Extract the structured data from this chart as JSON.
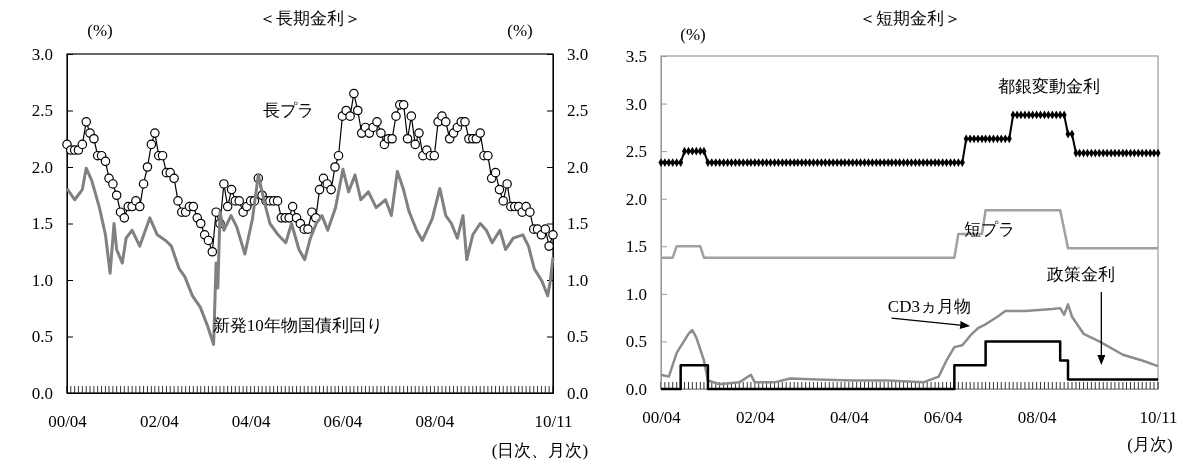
{
  "chart_data": [
    {
      "type": "line",
      "title": "＜長期金利＞",
      "ylabel": "(%)",
      "y2label": "(%)",
      "annotations": [
        "(日次、月次)"
      ],
      "x": [
        "2000-04",
        "2000-05",
        "2000-06",
        "2000-07",
        "2000-08",
        "2000-09",
        "2000-10",
        "2000-11",
        "2000-12",
        "2001-01",
        "2001-02",
        "2001-03",
        "2001-04",
        "2001-05",
        "2001-06",
        "2001-07",
        "2001-08",
        "2001-09",
        "2001-10",
        "2001-11",
        "2001-12",
        "2002-01",
        "2002-02",
        "2002-03",
        "2002-04",
        "2002-05",
        "2002-06",
        "2002-07",
        "2002-08",
        "2002-09",
        "2002-10",
        "2002-11",
        "2002-12",
        "2003-01",
        "2003-02",
        "2003-03",
        "2003-04",
        "2003-05",
        "2003-06",
        "2003-07",
        "2003-08",
        "2003-09",
        "2003-10",
        "2003-11",
        "2003-12",
        "2004-01",
        "2004-02",
        "2004-03",
        "2004-04",
        "2004-05",
        "2004-06",
        "2004-07",
        "2004-08",
        "2004-09",
        "2004-10",
        "2004-11",
        "2004-12",
        "2005-01",
        "2005-02",
        "2005-03",
        "2005-04",
        "2005-05",
        "2005-06",
        "2005-07",
        "2005-08",
        "2005-09",
        "2005-10",
        "2005-11",
        "2005-12",
        "2006-01",
        "2006-02",
        "2006-03",
        "2006-04",
        "2006-05",
        "2006-06",
        "2006-07",
        "2006-08",
        "2006-09",
        "2006-10",
        "2006-11",
        "2006-12",
        "2007-01",
        "2007-02",
        "2007-03",
        "2007-04",
        "2007-05",
        "2007-06",
        "2007-07",
        "2007-08",
        "2007-09",
        "2007-10",
        "2007-11",
        "2007-12",
        "2008-01",
        "2008-02",
        "2008-03",
        "2008-04",
        "2008-05",
        "2008-06",
        "2008-07",
        "2008-08",
        "2008-09",
        "2008-10",
        "2008-11",
        "2008-12",
        "2009-01",
        "2009-02",
        "2009-03",
        "2009-04",
        "2009-05",
        "2009-06",
        "2009-07",
        "2009-08",
        "2009-09",
        "2009-10",
        "2009-11",
        "2009-12",
        "2010-01",
        "2010-02",
        "2010-03",
        "2010-04",
        "2010-05",
        "2010-06",
        "2010-07",
        "2010-08",
        "2010-09",
        "2010-10",
        "2010-11"
      ],
      "xlim": [
        "2000-04",
        "2010-11"
      ],
      "xticks": [
        {
          "value": "2000-04",
          "label": "00/04"
        },
        {
          "value": "2002-04",
          "label": "02/04"
        },
        {
          "value": "2004-04",
          "label": "04/04"
        },
        {
          "value": "2006-04",
          "label": "06/04"
        },
        {
          "value": "2008-04",
          "label": "08/04"
        },
        {
          "value": "2010-11",
          "label": "10/11"
        }
      ],
      "ylim": [
        0,
        3
      ],
      "yticks": [
        {
          "value": 0,
          "label": "0.0"
        },
        {
          "value": 0.5,
          "label": "0.5"
        },
        {
          "value": 1,
          "label": "1.0"
        },
        {
          "value": 1.5,
          "label": "1.5"
        },
        {
          "value": 2,
          "label": "2.0"
        },
        {
          "value": 2.5,
          "label": "2.5"
        },
        {
          "value": 3,
          "label": "3.0"
        }
      ],
      "y2lim": [
        0,
        3
      ],
      "y2ticks": [
        {
          "value": 0,
          "label": "0.0"
        },
        {
          "value": 0.5,
          "label": "0.5"
        },
        {
          "value": 1,
          "label": "1.0"
        },
        {
          "value": 1.5,
          "label": "1.5"
        },
        {
          "value": 2,
          "label": "2.0"
        },
        {
          "value": 2.5,
          "label": "2.5"
        },
        {
          "value": 3,
          "label": "3.0"
        }
      ],
      "series": [
        {
          "name": "長プラ",
          "color": "#000000",
          "marker": "circle",
          "values": [
            2.2,
            2.15,
            2.15,
            2.15,
            2.2,
            2.4,
            2.3,
            2.25,
            2.1,
            2.1,
            2.05,
            1.9,
            1.85,
            1.75,
            1.6,
            1.55,
            1.65,
            1.65,
            1.7,
            1.65,
            1.85,
            2.0,
            2.2,
            2.3,
            2.1,
            2.1,
            1.95,
            1.95,
            1.9,
            1.7,
            1.6,
            1.6,
            1.65,
            1.65,
            1.55,
            1.5,
            1.4,
            1.35,
            1.25,
            1.6,
            1.5,
            1.85,
            1.65,
            1.8,
            1.7,
            1.7,
            1.6,
            1.65,
            1.7,
            1.7,
            1.9,
            1.75,
            1.7,
            1.7,
            1.7,
            1.7,
            1.55,
            1.55,
            1.55,
            1.65,
            1.55,
            1.5,
            1.45,
            1.45,
            1.6,
            1.55,
            1.8,
            1.9,
            1.85,
            1.8,
            2.0,
            2.1,
            2.45,
            2.5,
            2.45,
            2.65,
            2.5,
            2.3,
            2.35,
            2.3,
            2.35,
            2.4,
            2.3,
            2.2,
            2.25,
            2.25,
            2.45,
            2.55,
            2.55,
            2.25,
            2.45,
            2.2,
            2.3,
            2.1,
            2.15,
            2.1,
            2.1,
            2.4,
            2.45,
            2.4,
            2.25,
            2.3,
            2.35,
            2.4,
            2.4,
            2.25,
            2.25,
            2.25,
            2.3,
            2.1,
            2.1,
            1.9,
            1.95,
            1.8,
            1.7,
            1.85,
            1.65,
            1.65,
            1.65,
            1.6,
            1.65,
            1.6,
            1.45,
            1.45,
            1.4,
            1.45,
            1.3,
            1.4
          ]
        },
        {
          "name": "新発10年物国債利回り",
          "color": "#808080",
          "x": [
            "2000-04-01",
            "2000-06-01",
            "2000-08-01",
            "2000-09-01",
            "2000-10-15",
            "2000-12-15",
            "2001-02-01",
            "2001-03-10",
            "2001-04-10",
            "2001-05-01",
            "2001-06-15",
            "2001-07-15",
            "2001-09-01",
            "2001-11-01",
            "2002-01-20",
            "2002-03-20",
            "2002-05-25",
            "2002-07-10",
            "2002-09-10",
            "2002-10-25",
            "2002-12-25",
            "2003-02-25",
            "2003-04-25",
            "2003-06-11",
            "2003-07-01",
            "2003-07-15",
            "2003-08-01",
            "2003-09-01",
            "2003-10-28",
            "2003-12-12",
            "2004-02-15",
            "2004-04-15",
            "2004-06-01",
            "2004-07-15",
            "2004-09-01",
            "2004-11-05",
            "2005-01-05",
            "2005-02-20",
            "2005-04-20",
            "2005-06-05",
            "2005-07-20",
            "2005-09-05",
            "2005-10-20",
            "2005-12-05",
            "2006-02-05",
            "2006-04-05",
            "2006-05-20",
            "2006-07-10",
            "2006-08-25",
            "2006-10-25",
            "2006-12-25",
            "2007-03-10",
            "2007-04-25",
            "2007-06-12",
            "2007-07-28",
            "2007-09-12",
            "2007-11-12",
            "2007-12-28",
            "2008-03-15",
            "2008-05-15",
            "2008-07-01",
            "2008-08-15",
            "2008-10-01",
            "2008-11-15",
            "2008-12-15",
            "2009-02-01",
            "2009-04-01",
            "2009-05-20",
            "2009-07-05",
            "2009-09-05",
            "2009-10-20",
            "2009-12-20",
            "2010-03-05",
            "2010-04-20",
            "2010-06-05",
            "2010-08-05",
            "2010-09-20",
            "2010-10-10",
            "2010-11-01"
          ],
          "values": [
            1.81,
            1.71,
            1.8,
            1.99,
            1.88,
            1.64,
            1.4,
            1.06,
            1.5,
            1.27,
            1.15,
            1.37,
            1.44,
            1.3,
            1.55,
            1.4,
            1.35,
            1.3,
            1.1,
            1.03,
            0.86,
            0.76,
            0.59,
            0.43,
            1.15,
            0.93,
            1.6,
            1.44,
            1.57,
            1.47,
            1.23,
            1.54,
            1.93,
            1.71,
            1.5,
            1.4,
            1.33,
            1.5,
            1.27,
            1.18,
            1.37,
            1.5,
            1.57,
            1.44,
            1.64,
            1.98,
            1.78,
            1.93,
            1.71,
            1.78,
            1.64,
            1.71,
            1.57,
            1.96,
            1.81,
            1.61,
            1.44,
            1.35,
            1.54,
            1.81,
            1.57,
            1.5,
            1.37,
            1.57,
            1.18,
            1.4,
            1.5,
            1.44,
            1.33,
            1.44,
            1.27,
            1.37,
            1.4,
            1.3,
            1.1,
            0.99,
            0.86,
            0.99,
            1.2
          ]
        }
      ]
    },
    {
      "type": "line",
      "title": "＜短期金利＞",
      "ylabel": "(%)",
      "annotations": [
        "(月次)"
      ],
      "x": [
        "2000-04",
        "2000-05",
        "2000-06",
        "2000-07",
        "2000-08",
        "2000-09",
        "2000-10",
        "2000-11",
        "2000-12",
        "2001-01",
        "2001-02",
        "2001-03",
        "2001-04",
        "2001-05",
        "2001-06",
        "2001-07",
        "2001-08",
        "2001-09",
        "2001-10",
        "2001-11",
        "2001-12",
        "2002-01",
        "2002-02",
        "2002-03",
        "2002-04",
        "2002-05",
        "2002-06",
        "2002-07",
        "2002-08",
        "2002-09",
        "2002-10",
        "2002-11",
        "2002-12",
        "2003-01",
        "2003-02",
        "2003-03",
        "2003-04",
        "2003-05",
        "2003-06",
        "2003-07",
        "2003-08",
        "2003-09",
        "2003-10",
        "2003-11",
        "2003-12",
        "2004-01",
        "2004-02",
        "2004-03",
        "2004-04",
        "2004-05",
        "2004-06",
        "2004-07",
        "2004-08",
        "2004-09",
        "2004-10",
        "2004-11",
        "2004-12",
        "2005-01",
        "2005-02",
        "2005-03",
        "2005-04",
        "2005-05",
        "2005-06",
        "2005-07",
        "2005-08",
        "2005-09",
        "2005-10",
        "2005-11",
        "2005-12",
        "2006-01",
        "2006-02",
        "2006-03",
        "2006-04",
        "2006-05",
        "2006-06",
        "2006-07",
        "2006-08",
        "2006-09",
        "2006-10",
        "2006-11",
        "2006-12",
        "2007-01",
        "2007-02",
        "2007-03",
        "2007-04",
        "2007-05",
        "2007-06",
        "2007-07",
        "2007-08",
        "2007-09",
        "2007-10",
        "2007-11",
        "2007-12",
        "2008-01",
        "2008-02",
        "2008-03",
        "2008-04",
        "2008-05",
        "2008-06",
        "2008-07",
        "2008-08",
        "2008-09",
        "2008-10",
        "2008-11",
        "2008-12",
        "2009-01",
        "2009-02",
        "2009-03",
        "2009-04",
        "2009-05",
        "2009-06",
        "2009-07",
        "2009-08",
        "2009-09",
        "2009-10",
        "2009-11",
        "2009-12",
        "2010-01",
        "2010-02",
        "2010-03",
        "2010-04",
        "2010-05",
        "2010-06",
        "2010-07",
        "2010-08",
        "2010-09",
        "2010-10",
        "2010-11"
      ],
      "xlim": [
        "2000-04",
        "2010-11"
      ],
      "xticks": [
        {
          "value": "2000-04",
          "label": "00/04"
        },
        {
          "value": "2002-04",
          "label": "02/04"
        },
        {
          "value": "2004-04",
          "label": "04/04"
        },
        {
          "value": "2006-04",
          "label": "06/04"
        },
        {
          "value": "2008-04",
          "label": "08/04"
        },
        {
          "value": "2010-11",
          "label": "10/11"
        }
      ],
      "ylim": [
        0,
        3.5
      ],
      "yticks": [
        {
          "value": 0,
          "label": "0.0"
        },
        {
          "value": 0.5,
          "label": "0.5"
        },
        {
          "value": 1,
          "label": "1.0"
        },
        {
          "value": 1.5,
          "label": "1.5"
        },
        {
          "value": 2,
          "label": "2.0"
        },
        {
          "value": 2.5,
          "label": "2.5"
        },
        {
          "value": 3,
          "label": "3.0"
        },
        {
          "value": 3.5,
          "label": "3.5"
        }
      ],
      "series": [
        {
          "name": "都銀変動金利",
          "color": "#000000",
          "marker": "diamond",
          "values": [
            2.38,
            2.38,
            2.38,
            2.38,
            2.38,
            2.38,
            2.5,
            2.5,
            2.5,
            2.5,
            2.5,
            2.5,
            2.38,
            2.38,
            2.38,
            2.38,
            2.38,
            2.38,
            2.38,
            2.38,
            2.38,
            2.38,
            2.38,
            2.38,
            2.38,
            2.38,
            2.38,
            2.38,
            2.38,
            2.38,
            2.38,
            2.38,
            2.38,
            2.38,
            2.38,
            2.38,
            2.38,
            2.38,
            2.38,
            2.38,
            2.38,
            2.38,
            2.38,
            2.38,
            2.38,
            2.38,
            2.38,
            2.38,
            2.38,
            2.38,
            2.38,
            2.38,
            2.38,
            2.38,
            2.38,
            2.38,
            2.38,
            2.38,
            2.38,
            2.38,
            2.38,
            2.38,
            2.38,
            2.38,
            2.38,
            2.38,
            2.38,
            2.38,
            2.38,
            2.38,
            2.38,
            2.38,
            2.38,
            2.38,
            2.38,
            2.38,
            2.38,
            2.38,
            2.63,
            2.63,
            2.63,
            2.63,
            2.63,
            2.63,
            2.63,
            2.63,
            2.63,
            2.63,
            2.63,
            2.63,
            2.88,
            2.88,
            2.88,
            2.88,
            2.88,
            2.88,
            2.88,
            2.88,
            2.88,
            2.88,
            2.88,
            2.88,
            2.88,
            2.88,
            2.68,
            2.68,
            2.48,
            2.48,
            2.48,
            2.48,
            2.48,
            2.48,
            2.48,
            2.48,
            2.48,
            2.48,
            2.48,
            2.48,
            2.48,
            2.48,
            2.48,
            2.48,
            2.48,
            2.48,
            2.48,
            2.48,
            2.48,
            2.48
          ]
        },
        {
          "name": "短プラ",
          "color": "#a0a0a0",
          "values": [
            1.38,
            1.38,
            1.38,
            1.38,
            1.5,
            1.5,
            1.5,
            1.5,
            1.5,
            1.5,
            1.5,
            1.38,
            1.38,
            1.38,
            1.38,
            1.38,
            1.38,
            1.38,
            1.38,
            1.38,
            1.38,
            1.38,
            1.38,
            1.38,
            1.38,
            1.38,
            1.38,
            1.38,
            1.38,
            1.38,
            1.38,
            1.38,
            1.38,
            1.38,
            1.38,
            1.38,
            1.38,
            1.38,
            1.38,
            1.38,
            1.38,
            1.38,
            1.38,
            1.38,
            1.38,
            1.38,
            1.38,
            1.38,
            1.38,
            1.38,
            1.38,
            1.38,
            1.38,
            1.38,
            1.38,
            1.38,
            1.38,
            1.38,
            1.38,
            1.38,
            1.38,
            1.38,
            1.38,
            1.38,
            1.38,
            1.38,
            1.38,
            1.38,
            1.38,
            1.38,
            1.38,
            1.38,
            1.38,
            1.38,
            1.38,
            1.38,
            1.63,
            1.63,
            1.63,
            1.63,
            1.63,
            1.63,
            1.63,
            1.88,
            1.88,
            1.88,
            1.88,
            1.88,
            1.88,
            1.88,
            1.88,
            1.88,
            1.88,
            1.88,
            1.88,
            1.88,
            1.88,
            1.88,
            1.88,
            1.88,
            1.88,
            1.88,
            1.88,
            1.68,
            1.48,
            1.48,
            1.48,
            1.48,
            1.48,
            1.48,
            1.48,
            1.48,
            1.48,
            1.48,
            1.48,
            1.48,
            1.48,
            1.48,
            1.48,
            1.48,
            1.48,
            1.48,
            1.48,
            1.48,
            1.48,
            1.48,
            1.48,
            1.48
          ]
        },
        {
          "name": "CD3ヵ月物",
          "color": "#8c8c8c",
          "x": [
            "2000-04",
            "2000-06",
            "2000-08",
            "2000-11",
            "2000-12",
            "2001-01",
            "2001-03",
            "2001-04",
            "2001-07",
            "2001-12",
            "2002-03",
            "2002-04",
            "2002-09",
            "2003-01",
            "2003-08",
            "2004-05",
            "2005-02",
            "2005-11",
            "2006-03",
            "2006-05",
            "2006-07",
            "2006-09",
            "2006-11",
            "2007-01",
            "2007-03",
            "2007-06",
            "2007-08",
            "2008-01",
            "2008-08",
            "2008-10",
            "2008-11",
            "2008-12",
            "2009-01",
            "2009-04",
            "2009-08",
            "2010-02",
            "2010-07",
            "2010-11"
          ],
          "values": [
            0.15,
            0.13,
            0.38,
            0.58,
            0.62,
            0.54,
            0.3,
            0.09,
            0.05,
            0.07,
            0.15,
            0.07,
            0.07,
            0.11,
            0.1,
            0.09,
            0.09,
            0.07,
            0.13,
            0.3,
            0.44,
            0.46,
            0.56,
            0.64,
            0.68,
            0.76,
            0.82,
            0.82,
            0.84,
            0.85,
            0.78,
            0.89,
            0.76,
            0.58,
            0.5,
            0.36,
            0.3,
            0.24
          ]
        },
        {
          "name": "政策金利",
          "color": "#000000",
          "type": "step",
          "x": [
            "2000-04",
            "2000-09",
            "2001-04",
            "2006-07",
            "2007-03",
            "2008-10",
            "2008-12",
            "2010-11"
          ],
          "values": [
            0,
            0.25,
            0,
            0.25,
            0.5,
            0.3,
            0.1,
            0.1
          ]
        }
      ]
    }
  ]
}
